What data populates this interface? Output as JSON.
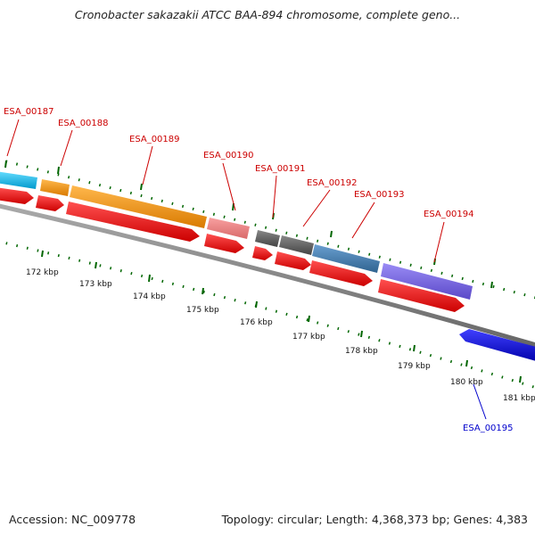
{
  "title": "Cronobacter sakazakii ATCC BAA-894 chromosome, complete geno...",
  "footer": {
    "accession": "Accession: NC_009778",
    "summary": "Topology: circular; Length: 4,368,373 bp; Genes: 4,383"
  },
  "gene_labels": [
    {
      "id": "ESA_00187",
      "color": "#cc0000"
    },
    {
      "id": "ESA_00188",
      "color": "#cc0000"
    },
    {
      "id": "ESA_00189",
      "color": "#cc0000"
    },
    {
      "id": "ESA_00190",
      "color": "#cc0000"
    },
    {
      "id": "ESA_00191",
      "color": "#cc0000"
    },
    {
      "id": "ESA_00192",
      "color": "#cc0000"
    },
    {
      "id": "ESA_00193",
      "color": "#cc0000"
    },
    {
      "id": "ESA_00194",
      "color": "#cc0000"
    },
    {
      "id": "ESA_00195",
      "color": "#0000cc"
    }
  ],
  "kbp_labels": [
    "172 kbp",
    "173 kbp",
    "174 kbp",
    "175 kbp",
    "176 kbp",
    "177 kbp",
    "178 kbp",
    "179 kbp",
    "180 kbp",
    "181 kbp"
  ],
  "colors": {
    "cds": "#ff0000",
    "backbone": "#888888",
    "tick": "#006600",
    "cyan": "#33ccff",
    "orange": "#ff9900",
    "pink": "#f08080",
    "darkgray": "#666666",
    "steelblue": "#4682b4",
    "purple": "#7b68ee",
    "blue": "#0000ff"
  }
}
